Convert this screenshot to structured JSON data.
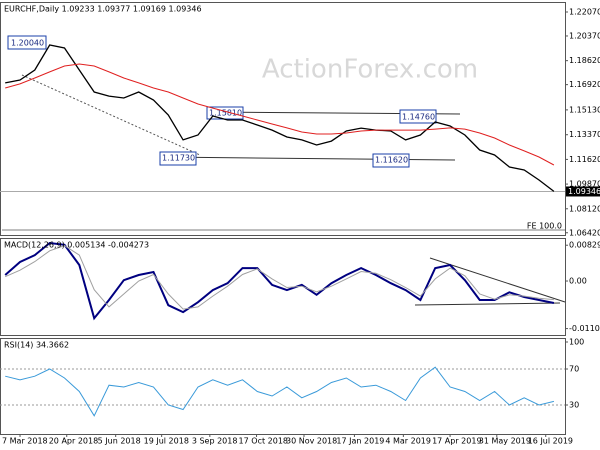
{
  "chart_data": [
    {
      "type": "line",
      "title": "EURCHF,Daily 1.09233 1.09377 1.09169 1.09346",
      "watermark": "ActionForex.com",
      "annotations": [
        "1.20040",
        "1.15810",
        "1.14760",
        "1.11730",
        "1.11620",
        "FE 100.0"
      ],
      "last_price": 1.09346,
      "x": [
        -2,
        0,
        2,
        4,
        6,
        8,
        10,
        12,
        14,
        16,
        18,
        20,
        22,
        24,
        26,
        28,
        30,
        32,
        34,
        36,
        38,
        40,
        42,
        44,
        46,
        48,
        50,
        52,
        54,
        56,
        58,
        60,
        62,
        64,
        66,
        68,
        70,
        72
      ],
      "series": [
        {
          "color": "#000000",
          "values": [
            1.1704,
            1.1725,
            1.1796,
            1.1973,
            1.1952,
            1.1796,
            1.164,
            1.1611,
            1.1597,
            1.164,
            1.1583,
            1.1477,
            1.13,
            1.1335,
            1.147,
            1.1441,
            1.1441,
            1.1406,
            1.137,
            1.1321,
            1.13,
            1.1264,
            1.1292,
            1.1363,
            1.1384,
            1.137,
            1.1363,
            1.13,
            1.1335,
            1.1427,
            1.1399,
            1.1335,
            1.1229,
            1.1193,
            1.1108,
            1.1087,
            1.1016,
            1.0935
          ]
        },
        {
          "color": "#e02020",
          "values": [
            1.1668,
            1.1697,
            1.1739,
            1.1782,
            1.1824,
            1.1838,
            1.1824,
            1.1782,
            1.1739,
            1.1704,
            1.1668,
            1.164,
            1.1597,
            1.1555,
            1.1526,
            1.1498,
            1.147,
            1.1441,
            1.1413,
            1.1385,
            1.1356,
            1.1342,
            1.1342,
            1.1349,
            1.1363,
            1.137,
            1.137,
            1.137,
            1.137,
            1.1377,
            1.1385,
            1.1377,
            1.1349,
            1.1314,
            1.1264,
            1.1222,
            1.1179,
            1.1122
          ]
        }
      ],
      "xlim": [
        -2.7,
        73.5
      ],
      "ylim": [
        1.0619,
        1.2292
      ],
      "yticks": [
        {
          "value": 1.2207,
          "label": "1.22070"
        },
        {
          "value": 1.2037,
          "label": "1.20370"
        },
        {
          "value": 1.1862,
          "label": "1.18620"
        },
        {
          "value": 1.1692,
          "label": "1.16920"
        },
        {
          "value": 1.1513,
          "label": "1.15130"
        },
        {
          "value": 1.1337,
          "label": "1.13370"
        },
        {
          "value": 1.1162,
          "label": "1.11620"
        },
        {
          "value": 1.0987,
          "label": "1.09870"
        },
        {
          "value": 1.0812,
          "label": "1.08120"
        },
        {
          "value": 1.0642,
          "label": "1.06420"
        }
      ]
    },
    {
      "type": "line",
      "title": "MACD(12,26,9) 0.005134 -0.004273",
      "x": [
        -2,
        0,
        2,
        4,
        6,
        8,
        10,
        12,
        14,
        16,
        18,
        20,
        22,
        24,
        26,
        28,
        30,
        32,
        34,
        36,
        38,
        40,
        42,
        44,
        46,
        48,
        50,
        52,
        54,
        56,
        58,
        60,
        62,
        64,
        66,
        68,
        70,
        72
      ],
      "series": [
        {
          "color": "#000080",
          "values": [
            0.0014,
            0.0044,
            0.006,
            0.0088,
            0.0084,
            0.0037,
            -0.0086,
            -0.0044,
            0.0002,
            0.0014,
            0.0021,
            -0.0056,
            -0.0072,
            -0.0049,
            -0.0021,
            -0.0005,
            0.003,
            0.003,
            -0.0009,
            -0.0021,
            -0.0009,
            -0.0032,
            -0.0005,
            0.0014,
            0.003,
            0.0014,
            -0.0005,
            -0.0021,
            -0.0044,
            0.003,
            0.0037,
            0.0002,
            -0.0044,
            -0.0044,
            -0.0026,
            -0.0037,
            -0.0044,
            -0.0051
          ]
        },
        {
          "color": "#a0a0a0",
          "values": [
            0.001,
            0.0025,
            0.0045,
            0.007,
            0.0082,
            0.006,
            -0.002,
            -0.006,
            -0.003,
            0.0,
            0.0015,
            -0.003,
            -0.0065,
            -0.006,
            -0.0035,
            -0.0012,
            0.0015,
            0.0028,
            0.0005,
            -0.0015,
            -0.0012,
            -0.0025,
            -0.0012,
            0.0005,
            0.0022,
            0.0018,
            0.0003,
            -0.0015,
            -0.0035,
            0.0005,
            0.003,
            0.0012,
            -0.003,
            -0.0042,
            -0.0032,
            -0.0035,
            -0.004,
            -0.0043
          ]
        }
      ],
      "xlim": [
        -2.7,
        73.5
      ],
      "ylim": [
        -0.0125,
        0.0095
      ],
      "yticks": [
        0.008292,
        {
          "value": 0,
          "label": "0.00"
        },
        -0.011015
      ]
    },
    {
      "type": "line",
      "title": "RSI(14) 34.3662",
      "x": [
        -2,
        0,
        2,
        4,
        6,
        8,
        10,
        12,
        14,
        16,
        18,
        20,
        22,
        24,
        26,
        28,
        30,
        32,
        34,
        36,
        38,
        40,
        42,
        44,
        46,
        48,
        50,
        52,
        54,
        56,
        58,
        60,
        62,
        64,
        66,
        68,
        70,
        72
      ],
      "series": [
        {
          "color": "#3a9ad9",
          "values": [
            62,
            58,
            62,
            70,
            60,
            45,
            18,
            52,
            50,
            55,
            50,
            30,
            25,
            50,
            58,
            52,
            58,
            45,
            40,
            50,
            38,
            45,
            55,
            60,
            50,
            52,
            45,
            35,
            60,
            72,
            50,
            45,
            35,
            45,
            30,
            38,
            30,
            34
          ]
        }
      ],
      "xlim": [
        -2.7,
        73.5
      ],
      "ylim": [
        0,
        100
      ],
      "yticks": [
        100,
        70,
        30
      ],
      "xticks": [
        {
          "value": 0,
          "label": "7 Mar 2018"
        },
        {
          "value": 6.3,
          "label": "20 Apr 2018"
        },
        {
          "value": 12.9,
          "label": "5 Jun 2018"
        },
        {
          "value": 19.1,
          "label": "19 Jul 2018"
        },
        {
          "value": 25.6,
          "label": "3 Sep 2018"
        },
        {
          "value": 31.9,
          "label": "17 Oct 2018"
        },
        {
          "value": 38.3,
          "label": "30 Nov 2018"
        },
        {
          "value": 45.1,
          "label": "17 Jan 2019"
        },
        {
          "value": 51.7,
          "label": "4 Mar 2019"
        },
        {
          "value": 58,
          "label": "17 Apr 2019"
        },
        {
          "value": 64.3,
          "label": "31 May 2019"
        },
        {
          "value": 70.9,
          "label": "16 Jul 2019"
        }
      ]
    }
  ]
}
